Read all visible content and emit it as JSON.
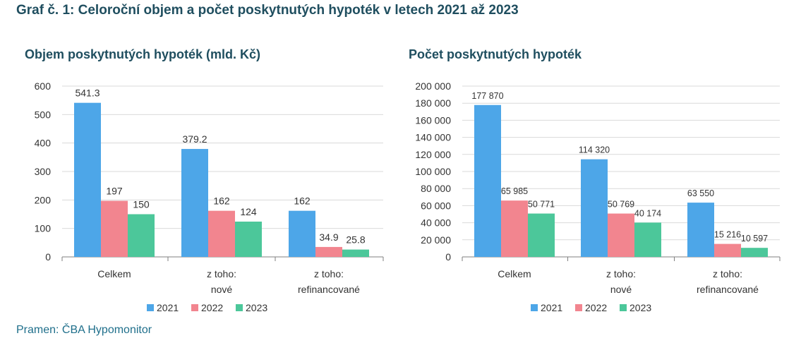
{
  "title": "Graf č. 1: Celoroční objem a počet poskytnutých hypoték v letech 2021 až 2023",
  "source": "Pramen: ČBA Hypomonitor",
  "colors": {
    "2021": "#4da6e8",
    "2022": "#f2858f",
    "2023": "#4cc79a",
    "grid": "#d9d9d9",
    "axis": "#7f7f7f"
  },
  "chart_data": [
    {
      "type": "bar",
      "title": "Objem poskytnutých hypoték (mld. Kč)",
      "categories": [
        [
          "Celkem"
        ],
        [
          "z toho:",
          "nové"
        ],
        [
          "z toho:",
          "refinancované"
        ]
      ],
      "series": [
        {
          "name": "2021",
          "values": [
            541.3,
            379.2,
            162
          ],
          "labels": [
            "541.3",
            "379.2",
            "162"
          ]
        },
        {
          "name": "2022",
          "values": [
            197,
            162,
            34.9
          ],
          "labels": [
            "197",
            "162",
            "34.9"
          ]
        },
        {
          "name": "2023",
          "values": [
            150,
            124,
            25.8
          ],
          "labels": [
            "150",
            "124",
            "25.8"
          ]
        }
      ],
      "ylim": [
        0,
        600
      ],
      "ticks": [
        "0",
        "100",
        "200",
        "300",
        "400",
        "500",
        "600"
      ],
      "legend": "bottom",
      "grid": true
    },
    {
      "type": "bar",
      "title": "Počet poskytnutých hypoték",
      "categories": [
        [
          "Celkem"
        ],
        [
          "z toho:",
          "nové"
        ],
        [
          "z toho:",
          "refinancované"
        ]
      ],
      "series": [
        {
          "name": "2021",
          "values": [
            177870,
            114320,
            63550
          ],
          "labels": [
            "177 870",
            "114 320",
            "63 550"
          ]
        },
        {
          "name": "2022",
          "values": [
            65985,
            50769,
            15216
          ],
          "labels": [
            "65 985",
            "50 769",
            "15 216"
          ]
        },
        {
          "name": "2023",
          "values": [
            50771,
            40174,
            10597
          ],
          "labels": [
            "50 771",
            "40 174",
            "10 597"
          ]
        }
      ],
      "ylim": [
        0,
        200000
      ],
      "ticks": [
        "0",
        "20 000",
        "40 000",
        "60 000",
        "80 000",
        "100 000",
        "120 000",
        "140 000",
        "160 000",
        "180 000",
        "200 000"
      ],
      "legend": "bottom",
      "grid": true
    }
  ]
}
